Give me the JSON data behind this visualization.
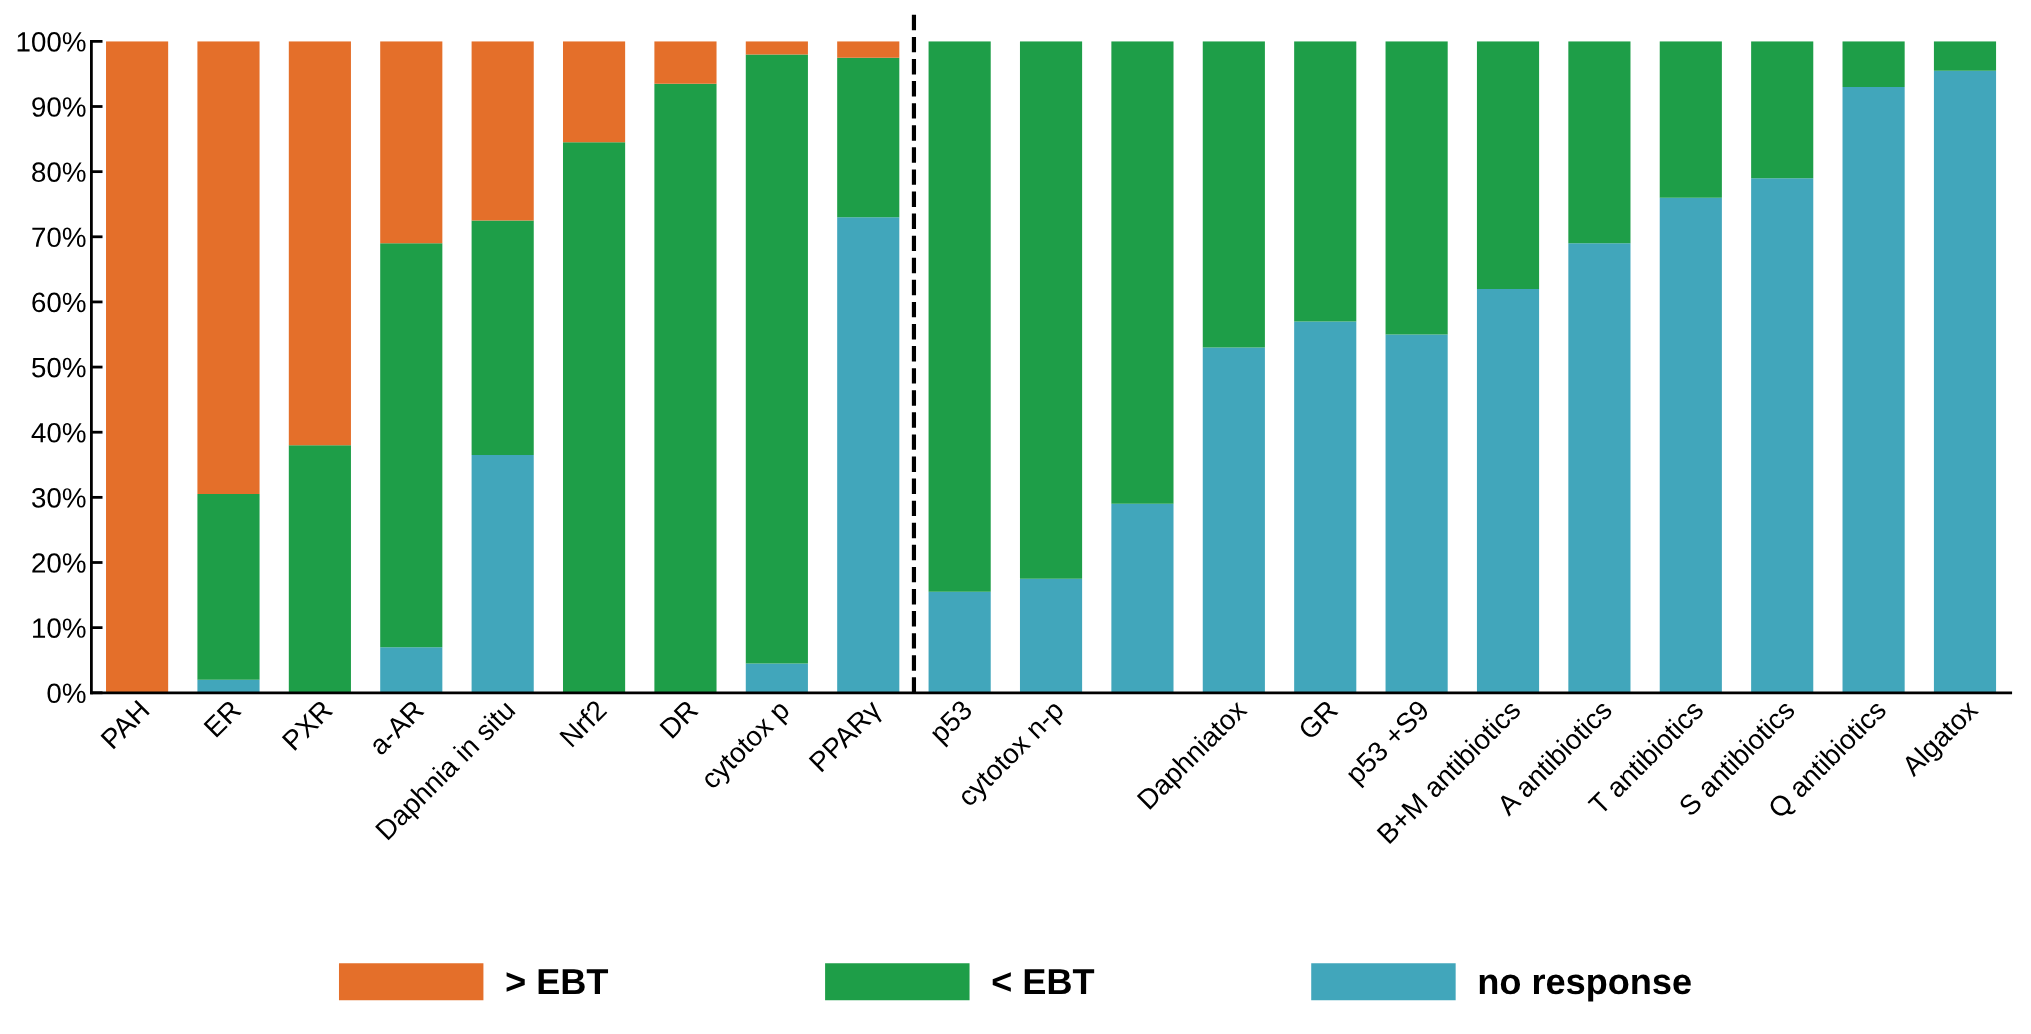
{
  "chart_data": {
    "type": "bar",
    "stacked": true,
    "categories": [
      "PAH",
      "ER",
      "PXR",
      "a-AR",
      "Daphnia in situ",
      "Nrf2",
      "DR",
      "cytotox p",
      "PPARγ",
      "p53",
      "cytotox n-p",
      null,
      "Daphniatox",
      "GR",
      "p53 +S9",
      "B+M antibiotics",
      "A antibiotics",
      "T antibiotics",
      "S antibiotics",
      "Q antibiotics",
      "Algatox"
    ],
    "series": [
      {
        "name": "no response",
        "color": "#41a6bb",
        "values": [
          0,
          2,
          0,
          7,
          36.5,
          0,
          0,
          4.5,
          73,
          15.5,
          17.5,
          29,
          53,
          57,
          55,
          62,
          69,
          76,
          79,
          93,
          95.5
        ]
      },
      {
        "name": "< EBT",
        "color": "#1e9e48",
        "values": [
          0,
          28.5,
          38,
          62,
          36,
          84.5,
          93.5,
          93.5,
          24.5,
          84.5,
          82.5,
          71,
          47,
          43,
          45,
          38,
          31,
          24,
          21,
          7,
          4.5
        ]
      },
      {
        "name": "> EBT",
        "color": "#e46f2a",
        "values": [
          100,
          69.5,
          62,
          31,
          27.5,
          15.5,
          6.5,
          2,
          2.5,
          0,
          0,
          0,
          0,
          0,
          0,
          0,
          0,
          0,
          0,
          0,
          0
        ]
      }
    ],
    "ylim": [
      0,
      100
    ],
    "yticks": [
      {
        "value": 0,
        "label": "0%"
      },
      {
        "value": 10,
        "label": "10%"
      },
      {
        "value": 20,
        "label": "20%"
      },
      {
        "value": 30,
        "label": "30%"
      },
      {
        "value": 40,
        "label": "40%"
      },
      {
        "value": 50,
        "label": "50%"
      },
      {
        "value": 60,
        "label": "60%"
      },
      {
        "value": 70,
        "label": "70%"
      },
      {
        "value": 80,
        "label": "80%"
      },
      {
        "value": 90,
        "label": "90%"
      },
      {
        "value": 100,
        "label": "100%"
      }
    ],
    "legend": "bottom",
    "grid": false
  }
}
